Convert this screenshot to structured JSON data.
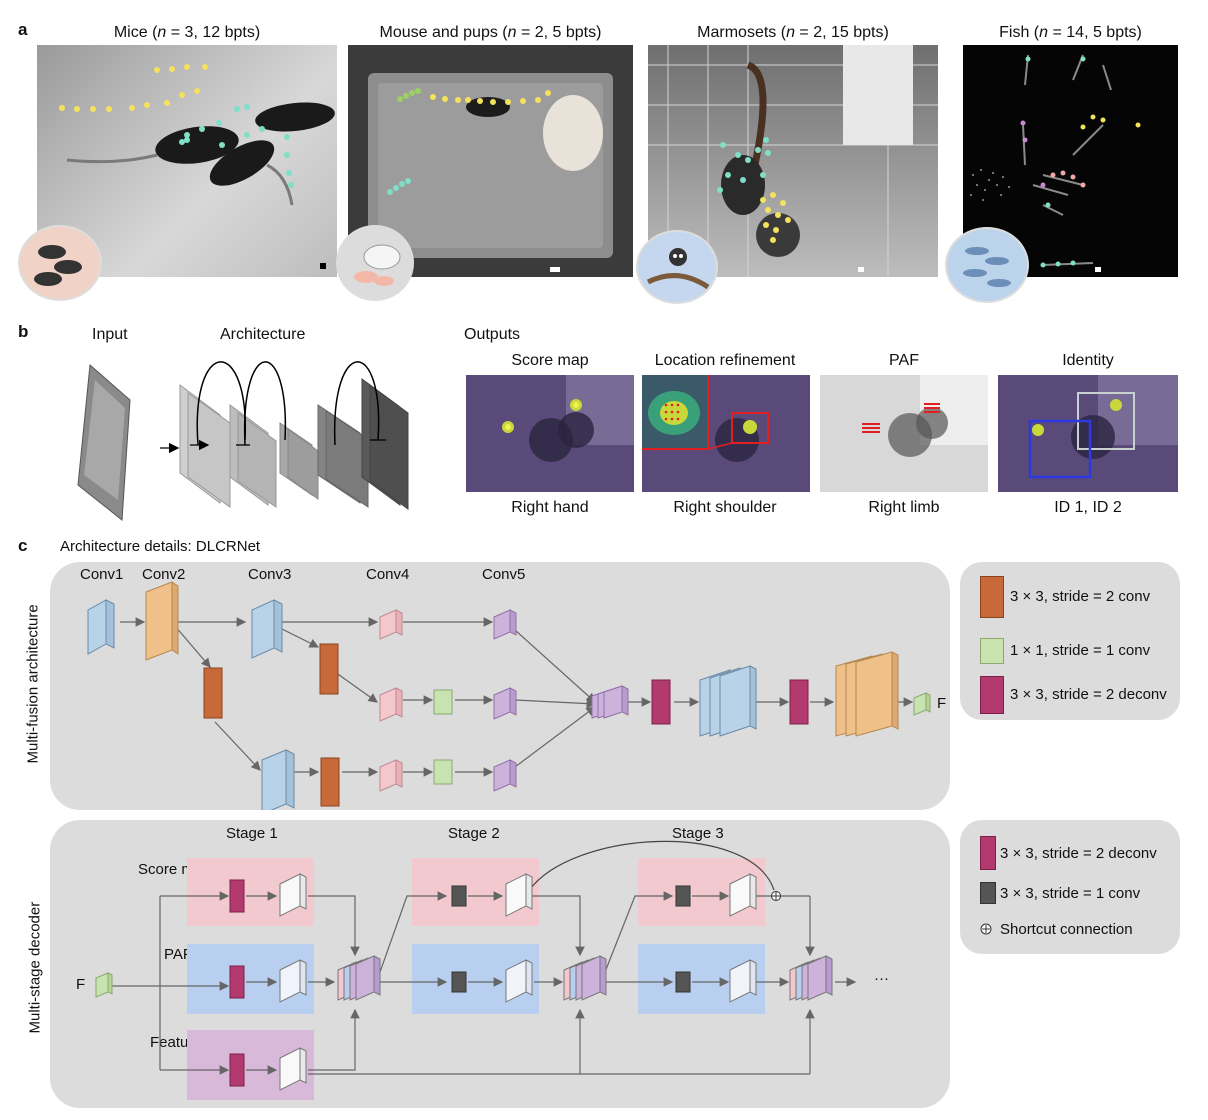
{
  "panel_a": {
    "label": "a",
    "images": [
      {
        "title_pre": "Mice (",
        "n": "n",
        "title_post": " = 3, 12 bpts)"
      },
      {
        "title_pre": "Mouse and pups (",
        "n": "n",
        "title_post": " = 2, 5 bpts)"
      },
      {
        "title_pre": "Marmosets (",
        "n": "n",
        "title_post": " = 2, 15 bpts)"
      },
      {
        "title_pre": "Fish (",
        "n": "n",
        "title_post": " = 14, 5 bpts)"
      }
    ]
  },
  "panel_b": {
    "label": "b",
    "input_label": "Input",
    "architecture_label": "Architecture",
    "outputs_label": "Outputs",
    "outputs": [
      {
        "title": "Score map",
        "caption": "Right hand"
      },
      {
        "title": "Location refinement",
        "caption": "Right shoulder"
      },
      {
        "title": "PAF",
        "caption": "Right limb"
      },
      {
        "title": "Identity",
        "caption": "ID 1, ID 2"
      }
    ]
  },
  "panel_c": {
    "label": "c",
    "title": "Architecture details: DLCRNet",
    "multi_fusion": {
      "side_label": "Multi-fusion architecture",
      "conv_labels": [
        "Conv1",
        "Conv2",
        "Conv3",
        "Conv4",
        "Conv5"
      ],
      "output_label": "F"
    },
    "legend_top": [
      {
        "text": "3 × 3, stride = 2 conv",
        "color": "#c8693a"
      },
      {
        "text": "1 × 1, stride = 1 conv",
        "color": "#c9e3b0"
      },
      {
        "text": "3 × 3, stride = 2 deconv",
        "color": "#b23a6e"
      }
    ],
    "decoder": {
      "side_label": "Multi-stage decoder",
      "stages": [
        "Stage 1",
        "Stage 2",
        "Stage 3"
      ],
      "row_labels": [
        "Score map",
        "PAF",
        "Feature"
      ],
      "input_label": "F",
      "ellipsis": "···"
    },
    "legend_bottom": [
      {
        "text": "3 × 3, stride = 2 deconv",
        "color": "#b23a6e"
      },
      {
        "text": "3 × 3, stride = 1 conv",
        "color": "#555555"
      },
      {
        "text": "Shortcut connection",
        "icon": "plus-circle-icon"
      }
    ]
  },
  "colors": {
    "panel_bg": "#dcdcdc",
    "blue_block": "#b8d3e8",
    "orange_block": "#efc08a",
    "pink_block": "#f3c7cc",
    "purple_block": "#cdb3dc",
    "green_block": "#c9e3b0",
    "row_pink": "#f2c9cf",
    "row_blue": "#b9cff0",
    "row_purple": "#d9b9d9"
  }
}
